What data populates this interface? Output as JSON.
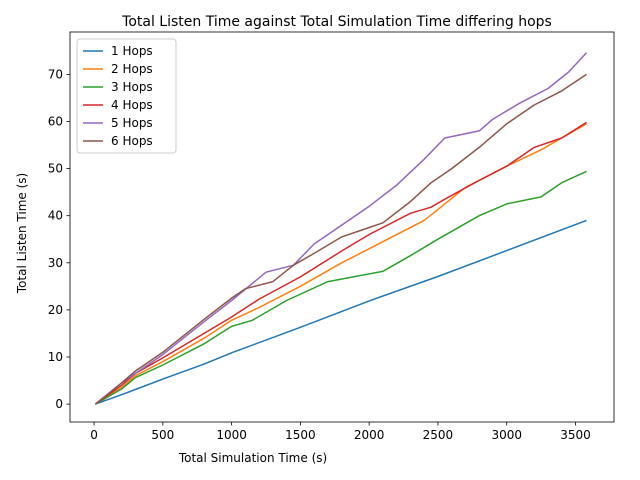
{
  "chart_data": {
    "type": "line",
    "title": "Total Listen Time against Total Simulation Time differing hops",
    "xlabel": "Total Simulation Time (s)",
    "ylabel": "Total Listen Time (s)",
    "xlim": [
      -175,
      3780
    ],
    "ylim": [
      -3.8,
      79
    ],
    "xticks": [
      0,
      500,
      1000,
      1500,
      2000,
      2500,
      3000,
      3500
    ],
    "yticks": [
      0,
      10,
      20,
      30,
      40,
      50,
      60,
      70
    ],
    "grid": false,
    "legend_position": "top-left",
    "series": [
      {
        "name": "1 Hops",
        "color": "#1f77b4",
        "x": [
          10,
          200,
          300,
          500,
          800,
          1000,
          1500,
          2000,
          2500,
          3000,
          3580
        ],
        "y": [
          0,
          2.0,
          3.1,
          5.3,
          8.5,
          10.9,
          16.3,
          21.9,
          27.1,
          32.6,
          39.0
        ]
      },
      {
        "name": "2 Hops",
        "color": "#ff7f0e",
        "x": [
          10,
          200,
          300,
          500,
          800,
          1000,
          1200,
          1500,
          1800,
          2000,
          2400,
          2550,
          2700,
          3000,
          3250,
          3400,
          3580
        ],
        "y": [
          0,
          3.5,
          6.0,
          9.0,
          14.0,
          17.8,
          20.5,
          25.0,
          30.0,
          33.0,
          39.0,
          42.5,
          46.0,
          50.5,
          54.0,
          56.5,
          59.5
        ]
      },
      {
        "name": "3 Hops",
        "color": "#2ca02c",
        "x": [
          10,
          200,
          300,
          500,
          800,
          1000,
          1150,
          1400,
          1700,
          2100,
          2300,
          2500,
          2800,
          3000,
          3250,
          3400,
          3580
        ],
        "y": [
          0,
          3.2,
          5.6,
          8.3,
          12.8,
          16.5,
          17.8,
          22.0,
          26.0,
          28.2,
          31.5,
          35.0,
          40.0,
          42.5,
          44.0,
          47.0,
          49.4
        ]
      },
      {
        "name": "4 Hops",
        "color": "#d62728",
        "x": [
          10,
          200,
          300,
          500,
          800,
          1000,
          1200,
          1500,
          1800,
          2000,
          2300,
          2450,
          2550,
          2800,
          3000,
          3200,
          3400,
          3580
        ],
        "y": [
          0,
          4.0,
          6.5,
          9.8,
          15.0,
          18.5,
          22.3,
          27.0,
          32.5,
          36.0,
          40.5,
          41.8,
          43.5,
          47.5,
          50.5,
          54.5,
          56.5,
          59.8
        ]
      },
      {
        "name": "5 Hops",
        "color": "#9467bd",
        "x": [
          10,
          200,
          300,
          500,
          800,
          1000,
          1250,
          1450,
          1600,
          1800,
          2000,
          2200,
          2400,
          2550,
          2800,
          2900,
          3100,
          3300,
          3450,
          3580
        ],
        "y": [
          0,
          4.5,
          6.5,
          10.5,
          17.5,
          22.0,
          28.0,
          29.5,
          34.0,
          38.0,
          42.0,
          46.5,
          52.0,
          56.5,
          58.0,
          60.5,
          64.0,
          67.0,
          70.5,
          74.6
        ]
      },
      {
        "name": "6 Hops",
        "color": "#8c564b",
        "x": [
          10,
          200,
          300,
          500,
          800,
          1000,
          1100,
          1300,
          1450,
          1600,
          1800,
          2000,
          2100,
          2300,
          2450,
          2600,
          2800,
          3000,
          3200,
          3400,
          3580
        ],
        "y": [
          0,
          4.5,
          7.0,
          11.0,
          18.0,
          22.5,
          24.5,
          26.0,
          29.5,
          32.0,
          35.5,
          37.5,
          38.5,
          43.0,
          47.0,
          50.0,
          54.5,
          59.5,
          63.5,
          66.5,
          70.0
        ]
      }
    ]
  }
}
